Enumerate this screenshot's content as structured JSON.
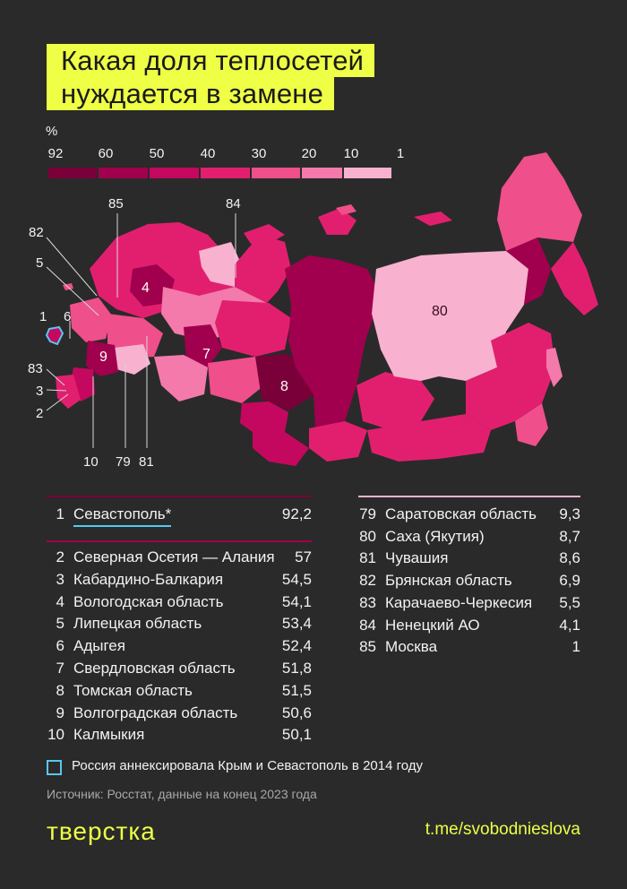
{
  "title": {
    "line1": "Какая доля теплосетей",
    "line2": "нуждается в замене"
  },
  "legend": {
    "unit": "%",
    "ticks": [
      "92",
      "60",
      "50",
      "40",
      "30",
      "20",
      "10",
      "1"
    ],
    "colors": [
      "#7a0039",
      "#a0004d",
      "#c4085f",
      "#e21f6f",
      "#ef4f8b",
      "#f37aaa",
      "#f8b1cf"
    ]
  },
  "map": {
    "colors": {
      "very_dark": "#7a0039",
      "dark": "#a0004d",
      "medium_dark": "#c4085f",
      "medium": "#e21f6f",
      "medium_light": "#ef4f8b",
      "light": "#f37aaa",
      "very_light": "#f8b1cf",
      "crimea_outline": "#58c7f0"
    },
    "labels_on_map": [
      "4",
      "7",
      "8",
      "9",
      "80"
    ],
    "labels_outside": [
      "85",
      "84",
      "82",
      "5",
      "1",
      "6",
      "83",
      "3",
      "2",
      "10",
      "79",
      "81"
    ]
  },
  "top_list": [
    {
      "rank": "1",
      "name": "Севастополь*",
      "value": "92,2"
    },
    {
      "rank": "2",
      "name": "Северная Осетия — Алания",
      "value": "57"
    },
    {
      "rank": "3",
      "name": "Кабардино-Балкария",
      "value": "54,5"
    },
    {
      "rank": "4",
      "name": "Вологодская область",
      "value": "54,1"
    },
    {
      "rank": "5",
      "name": "Липецкая область",
      "value": "53,4"
    },
    {
      "rank": "6",
      "name": "Адыгея",
      "value": "52,4"
    },
    {
      "rank": "7",
      "name": "Свердловская область",
      "value": "51,8"
    },
    {
      "rank": "8",
      "name": "Томская область",
      "value": "51,5"
    },
    {
      "rank": "9",
      "name": "Волгоградская область",
      "value": "50,6"
    },
    {
      "rank": "10",
      "name": "Калмыкия",
      "value": "50,1"
    }
  ],
  "bottom_list": [
    {
      "rank": "79",
      "name": "Саратовская область",
      "value": "9,3"
    },
    {
      "rank": "80",
      "name": "Саха (Якутия)",
      "value": "8,7"
    },
    {
      "rank": "81",
      "name": "Чувашия",
      "value": "8,6"
    },
    {
      "rank": "82",
      "name": "Брянская область",
      "value": "6,9"
    },
    {
      "rank": "83",
      "name": "Карачаево-Черкесия",
      "value": "5,5"
    },
    {
      "rank": "84",
      "name": "Ненецкий АО",
      "value": "4,1"
    },
    {
      "rank": "85",
      "name": "Москва",
      "value": "1"
    }
  ],
  "footnote": "Россия аннексировала Крым и Севастополь в 2014 году",
  "source": "Источник: Росстат, данные на конец 2023 года",
  "brand": "тверстка",
  "telegram": "t.me/svobodnieslova",
  "accent": "#eeff45"
}
